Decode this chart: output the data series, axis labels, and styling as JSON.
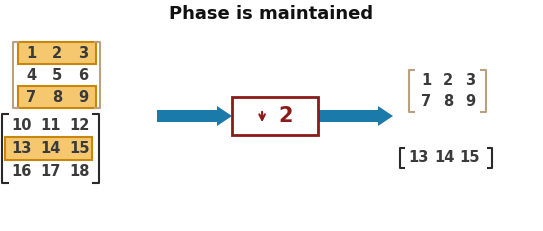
{
  "title": "Phase is maintained",
  "title_fontsize": 13,
  "title_fontweight": "bold",
  "bg_color": "#ffffff",
  "matrix_text_color": "#3a3a3a",
  "highlight_color": "#f5c870",
  "highlight_border": "#c8860a",
  "bracket_color_light": "#b8a080",
  "bracket_color_dark": "#2a2a2a",
  "arrow_color": "#1a7aaa",
  "downsample_border": "#8b1a1a",
  "downsample_text_color": "#8b1a1a",
  "matrix1": [
    [
      "1",
      "2",
      "3"
    ],
    [
      "4",
      "5",
      "6"
    ],
    [
      "7",
      "8",
      "9"
    ]
  ],
  "matrix2": [
    [
      "10",
      "11",
      "12"
    ],
    [
      "13",
      "14",
      "15"
    ],
    [
      "16",
      "17",
      "18"
    ]
  ],
  "out_matrix1": [
    [
      "1",
      "2",
      "3"
    ],
    [
      "7",
      "8",
      "9"
    ]
  ],
  "out_matrix2": [
    "13",
    "14",
    "15"
  ],
  "font_size_matrix": 10.5
}
